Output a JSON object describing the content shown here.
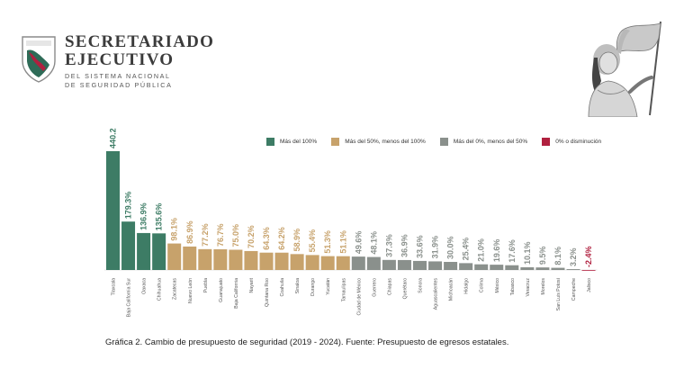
{
  "header": {
    "org_line1": "SECRETARIADO",
    "org_line2": "EJECUTIVO",
    "org_line3": "DEL SISTEMA NACIONAL",
    "org_line4": "DE SEGURIDAD PÚBLICA",
    "logo_icon": "federal-shield-icon",
    "illustration_icon": "woman-with-flag-illustration"
  },
  "legend": {
    "items": [
      {
        "label": "Más del 100%",
        "color": "#3d7c65"
      },
      {
        "label": "Más del 50%, menos del 100%",
        "color": "#c7a26b"
      },
      {
        "label": "Más del 0%, menos del 50%",
        "color": "#8a908c"
      },
      {
        "label": "0% o disminución",
        "color": "#b0203f"
      }
    ]
  },
  "chart_data": {
    "type": "bar",
    "title": "",
    "xlabel": "",
    "ylabel": "",
    "categories": [
      "Tlaxcala",
      "Baja California Sur",
      "Oaxaca",
      "Chihuahua",
      "Zacatecas",
      "Nuevo León",
      "Puebla",
      "Guanajuato",
      "Baja California",
      "Nayarit",
      "Quintana Roo",
      "Coahuila",
      "Sinaloa",
      "Durango",
      "Yucatán",
      "Tamaulipas",
      "Ciudad de México",
      "Guerrero",
      "Chiapas",
      "Querétaro",
      "Sonora",
      "Aguascalientes",
      "Michoacán",
      "Hidalgo",
      "Colima",
      "México",
      "Tabasco",
      "Veracruz",
      "Morelos",
      "San Luis Potosí",
      "Campeche",
      "Jalisco"
    ],
    "values": [
      440.2,
      179.3,
      136.9,
      135.6,
      98.1,
      86.9,
      77.2,
      76.7,
      75.0,
      70.2,
      64.3,
      64.2,
      58.9,
      55.4,
      51.3,
      51.1,
      49.6,
      48.1,
      37.3,
      36.9,
      33.6,
      31.9,
      30.0,
      25.4,
      21.0,
      19.6,
      17.6,
      10.1,
      9.5,
      8.1,
      3.2,
      -2.4
    ],
    "labels": [
      "440.2",
      "179.3%",
      "136.9%",
      "135.6%",
      "98.1%",
      "86.9%",
      "77.2%",
      "76.7%",
      "75.0%",
      "70.2%",
      "64.3%",
      "64.2%",
      "58.9%",
      "55.4%",
      "51.3%",
      "51.1%",
      "49.6%",
      "48.1%",
      "37.3%",
      "36.9%",
      "33.6%",
      "31.9%",
      "30.0%",
      "25.4%",
      "21.0%",
      "19.6%",
      "17.6%",
      "10.1%",
      "9.5%",
      "8.1%",
      "3.2%",
      "-2.4%"
    ],
    "color_groups": [
      0,
      0,
      0,
      0,
      1,
      1,
      1,
      1,
      1,
      1,
      1,
      1,
      1,
      1,
      1,
      1,
      2,
      2,
      2,
      2,
      2,
      2,
      2,
      2,
      2,
      2,
      2,
      2,
      2,
      2,
      2,
      3
    ]
  },
  "caption": "Gráfica 2. Cambio de presupuesto de seguridad (2019 - 2024). Fuente: Presupuesto de egresos estatales."
}
